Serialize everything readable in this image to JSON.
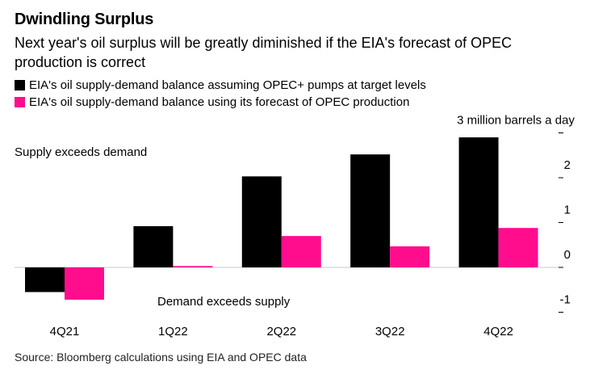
{
  "title": "Dwindling Surplus",
  "subtitle": "Next year's oil surplus will be greatly diminished if the EIA's forecast of OPEC production is correct",
  "source": "Source: Bloomberg calculations using EIA and OPEC data",
  "colors": {
    "series_a": "#000000",
    "series_b": "#ff0d8c"
  },
  "chart_data": {
    "type": "bar",
    "categories": [
      "4Q21",
      "1Q22",
      "2Q22",
      "3Q22",
      "4Q22"
    ],
    "series": [
      {
        "name": "EIA's oil supply-demand balance assuming OPEC+ pumps at target levels",
        "values": [
          -0.55,
          0.92,
          2.03,
          2.52,
          2.9
        ]
      },
      {
        "name": "EIA's oil supply-demand balance using its forecast of OPEC production",
        "values": [
          -0.72,
          0.03,
          0.7,
          0.47,
          0.88
        ]
      }
    ],
    "y_ticks": [
      -1,
      0,
      1,
      2
    ],
    "y_tick_labels": [
      "-1",
      "0",
      "1",
      "2"
    ],
    "ylim": [
      -1.1,
      3.2
    ],
    "ylabel": "3 million barrels a day",
    "annotations": {
      "top": "Supply exceeds demand",
      "bottom": "Demand exceeds supply"
    },
    "grid": false,
    "legend_position": "top-left"
  }
}
